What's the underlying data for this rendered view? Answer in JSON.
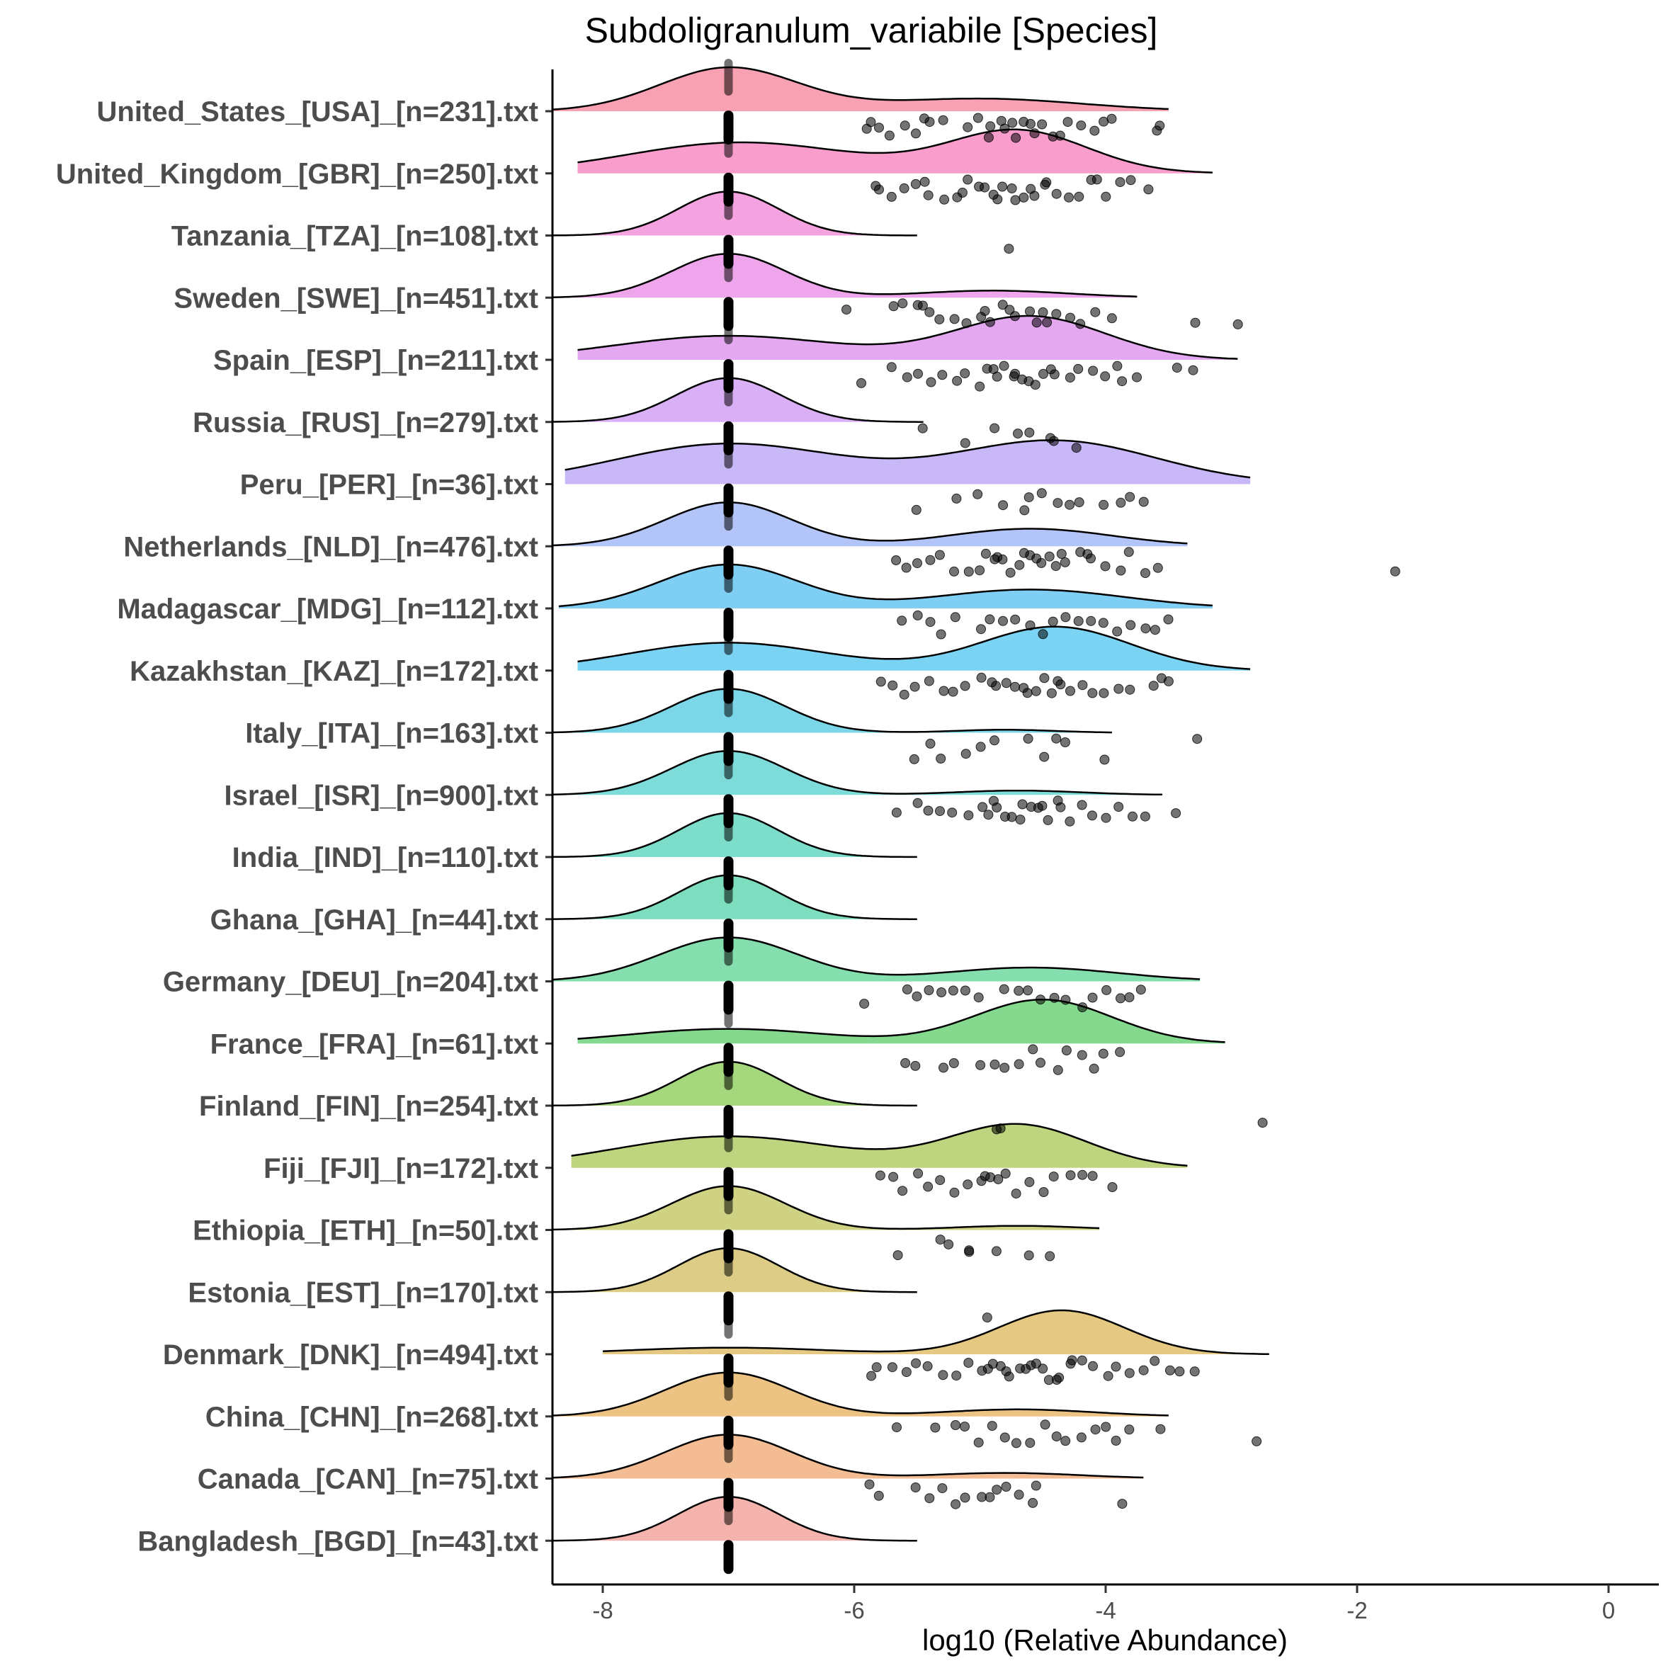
{
  "chart_data": {
    "type": "raincloud",
    "title": "Subdoligranulum_variabile [Species]",
    "xlabel": "log10 (Relative Abundance)",
    "ylabel": "",
    "xlim": [
      -8.4,
      0.4
    ],
    "xticks": [
      -8,
      -6,
      -4,
      -2,
      0
    ],
    "xtick_labels": [
      "-8",
      "-6",
      "-4",
      "-2",
      "0"
    ],
    "zero_value": -7,
    "groups": [
      {
        "label": "United_States_[USA]_[n=231].txt",
        "color": "#F8A1B2",
        "range": [
          -8.4,
          -3.5
        ],
        "comps": [
          [
            0.62,
            -7.0,
            0.55
          ],
          [
            0.18,
            -5.0,
            0.8
          ]
        ],
        "points": [
          -5.9,
          -5.85,
          -5.8,
          -5.7,
          -5.6,
          -5.5,
          -5.45,
          -5.4,
          -5.3,
          -5.1,
          -5.0,
          -4.95,
          -4.9,
          -4.85,
          -4.8,
          -4.75,
          -4.7,
          -4.65,
          -4.6,
          -4.55,
          -4.5,
          -4.4,
          -4.35,
          -4.3,
          -4.2,
          -4.1,
          -4.0,
          -3.95,
          -3.55,
          -3.6
        ]
      },
      {
        "label": "United_Kingdom_[GBR]_[n=250].txt",
        "color": "#F89DCC",
        "range": [
          -8.2,
          -3.15
        ],
        "comps": [
          [
            0.22,
            -6.9,
            0.9
          ],
          [
            0.3,
            -4.7,
            0.55
          ]
        ],
        "points": [
          -5.85,
          -5.8,
          -5.7,
          -5.6,
          -5.5,
          -5.45,
          -5.4,
          -5.3,
          -5.2,
          -5.15,
          -5.1,
          -5.0,
          -4.95,
          -4.9,
          -4.85,
          -4.8,
          -4.75,
          -4.7,
          -4.65,
          -4.6,
          -4.55,
          -4.5,
          -4.45,
          -4.4,
          -4.3,
          -4.2,
          -4.1,
          -4.05,
          -4.0,
          -3.9,
          -3.8,
          -3.65
        ]
      },
      {
        "label": "Tanzania_[TZA]_[n=108].txt",
        "color": "#F5A3E0",
        "range": [
          -8.4,
          -5.5
        ],
        "comps": [
          [
            1.0,
            -7.0,
            0.4
          ]
        ],
        "points": [
          -4.75
        ]
      },
      {
        "label": "Sweden_[SWE]_[n=451].txt",
        "color": "#EFA5EB",
        "range": [
          -8.4,
          -3.75
        ],
        "comps": [
          [
            0.75,
            -7.0,
            0.45
          ],
          [
            0.12,
            -4.9,
            0.6
          ]
        ],
        "points": [
          -6.05,
          -5.7,
          -5.6,
          -5.5,
          -5.45,
          -5.4,
          -5.3,
          -5.2,
          -5.1,
          -5.0,
          -4.95,
          -4.9,
          -4.8,
          -4.75,
          -4.7,
          -4.6,
          -4.55,
          -4.5,
          -4.45,
          -4.4,
          -4.3,
          -4.2,
          -4.1,
          -3.95,
          -3.3,
          -2.95
        ]
      },
      {
        "label": "Spain_[ESP]_[n=211].txt",
        "color": "#E3A8F0",
        "range": [
          -8.2,
          -2.95
        ],
        "comps": [
          [
            0.25,
            -7.0,
            0.9
          ],
          [
            0.45,
            -4.6,
            0.6
          ]
        ],
        "points": [
          -5.95,
          -5.7,
          -5.6,
          -5.5,
          -5.4,
          -5.3,
          -5.2,
          -5.1,
          -5.0,
          -4.95,
          -4.9,
          -4.85,
          -4.8,
          -4.75,
          -4.7,
          -4.65,
          -4.6,
          -4.55,
          -4.5,
          -4.45,
          -4.4,
          -4.3,
          -4.2,
          -4.1,
          -4.0,
          -3.9,
          -3.85,
          -3.75,
          -3.45,
          -3.3
        ]
      },
      {
        "label": "Russia_[RUS]_[n=279].txt",
        "color": "#D9B0F5",
        "range": [
          -8.4,
          -5.45
        ],
        "comps": [
          [
            1.0,
            -7.0,
            0.42
          ]
        ],
        "points": [
          -5.45,
          -5.1,
          -4.9,
          -4.7,
          -4.6,
          -4.45,
          -4.4,
          -4.25
        ]
      },
      {
        "label": "Peru_[PER]_[n=36].txt",
        "color": "#C8B8F8",
        "range": [
          -8.3,
          -2.85
        ],
        "comps": [
          [
            0.42,
            -7.0,
            0.9
          ],
          [
            0.45,
            -4.4,
            0.8
          ]
        ],
        "points": [
          -5.5,
          -5.2,
          -5.0,
          -4.8,
          -4.65,
          -4.6,
          -4.5,
          -4.4,
          -4.3,
          -4.2,
          -4.0,
          -3.9,
          -3.8,
          -3.7
        ]
      },
      {
        "label": "Netherlands_[NLD]_[n=476].txt",
        "color": "#B3C5F8",
        "range": [
          -8.4,
          -3.35
        ],
        "comps": [
          [
            0.7,
            -7.0,
            0.5
          ],
          [
            0.28,
            -4.6,
            0.65
          ]
        ],
        "points": [
          -5.65,
          -5.6,
          -5.5,
          -5.4,
          -5.3,
          -5.2,
          -5.1,
          -5.0,
          -4.95,
          -4.9,
          -4.85,
          -4.8,
          -4.75,
          -4.7,
          -4.65,
          -4.6,
          -4.55,
          -4.5,
          -4.45,
          -4.4,
          -4.35,
          -4.3,
          -4.2,
          -4.15,
          -4.1,
          -4.0,
          -3.9,
          -3.8,
          -3.7,
          -3.6,
          -1.7
        ]
      },
      {
        "label": "Madagascar_[MDG]_[n=112].txt",
        "color": "#7FCFF5",
        "range": [
          -8.35,
          -3.15
        ],
        "comps": [
          [
            0.65,
            -7.0,
            0.55
          ],
          [
            0.28,
            -4.6,
            0.75
          ]
        ],
        "points": [
          -5.6,
          -5.5,
          -5.4,
          -5.3,
          -5.2,
          -5.0,
          -4.9,
          -4.8,
          -4.7,
          -4.6,
          -4.5,
          -4.4,
          -4.3,
          -4.2,
          -4.1,
          -4.0,
          -3.9,
          -3.8,
          -3.7,
          -3.6,
          -3.5
        ]
      },
      {
        "label": "Kazakhstan_[KAZ]_[n=172].txt",
        "color": "#7AD3F2",
        "range": [
          -8.2,
          -2.85
        ],
        "comps": [
          [
            0.35,
            -7.0,
            0.8
          ],
          [
            0.55,
            -4.4,
            0.6
          ]
        ],
        "points": [
          -5.8,
          -5.7,
          -5.6,
          -5.5,
          -5.4,
          -5.3,
          -5.2,
          -5.1,
          -5.0,
          -4.9,
          -4.85,
          -4.8,
          -4.7,
          -4.65,
          -4.6,
          -4.55,
          -4.5,
          -4.45,
          -4.4,
          -4.35,
          -4.3,
          -4.2,
          -4.1,
          -4.0,
          -3.9,
          -3.8,
          -3.6,
          -3.55,
          -3.5
        ]
      },
      {
        "label": "Italy_[ITA]_[n=163].txt",
        "color": "#7BD7E8",
        "range": [
          -8.4,
          -3.95
        ],
        "comps": [
          [
            0.88,
            -7.0,
            0.45
          ],
          [
            0.06,
            -4.8,
            0.4
          ]
        ],
        "points": [
          -5.5,
          -5.4,
          -5.3,
          -5.1,
          -5.0,
          -4.9,
          -4.6,
          -4.5,
          -4.4,
          -4.3,
          -4.0,
          -3.25
        ]
      },
      {
        "label": "Israel_[ISR]_[n=900].txt",
        "color": "#7DDCD9",
        "range": [
          -8.4,
          -3.55
        ],
        "comps": [
          [
            0.82,
            -7.0,
            0.45
          ],
          [
            0.08,
            -4.7,
            0.5
          ]
        ],
        "points": [
          -5.65,
          -5.5,
          -5.4,
          -5.3,
          -5.2,
          -5.1,
          -5.0,
          -4.95,
          -4.9,
          -4.85,
          -4.8,
          -4.75,
          -4.7,
          -4.65,
          -4.6,
          -4.55,
          -4.5,
          -4.45,
          -4.4,
          -4.35,
          -4.3,
          -4.2,
          -4.1,
          -4.0,
          -3.9,
          -3.8,
          -3.7,
          -3.45
        ]
      },
      {
        "label": "India_[IND]_[n=110].txt",
        "color": "#7DDDCB",
        "range": [
          -8.4,
          -5.5
        ],
        "comps": [
          [
            1.0,
            -7.0,
            0.4
          ]
        ],
        "points": []
      },
      {
        "label": "Ghana_[GHA]_[n=44].txt",
        "color": "#7DDEBF",
        "range": [
          -8.4,
          -5.5
        ],
        "comps": [
          [
            1.0,
            -7.0,
            0.4
          ]
        ],
        "points": []
      },
      {
        "label": "Germany_[DEU]_[n=204].txt",
        "color": "#85DEAD",
        "range": [
          -8.4,
          -3.25
        ],
        "comps": [
          [
            0.7,
            -7.0,
            0.55
          ],
          [
            0.22,
            -4.6,
            0.7
          ]
        ],
        "points": [
          -5.9,
          -5.6,
          -5.5,
          -5.4,
          -5.3,
          -5.2,
          -5.1,
          -5.0,
          -4.8,
          -4.7,
          -4.6,
          -4.5,
          -4.4,
          -4.3,
          -4.2,
          -4.1,
          -4.0,
          -3.9,
          -3.8,
          -3.7
        ]
      },
      {
        "label": "France_[FRA]_[n=61].txt",
        "color": "#85D98F",
        "range": [
          -8.2,
          -3.05
        ],
        "comps": [
          [
            0.2,
            -7.0,
            0.8
          ],
          [
            0.6,
            -4.5,
            0.55
          ]
        ],
        "points": [
          -5.6,
          -5.5,
          -5.3,
          -5.2,
          -5.0,
          -4.9,
          -4.8,
          -4.7,
          -4.6,
          -4.5,
          -4.4,
          -4.3,
          -4.2,
          -4.1,
          -4.0,
          -3.9
        ]
      },
      {
        "label": "Finland_[FIN]_[n=254].txt",
        "color": "#A5D87D",
        "range": [
          -8.4,
          -5.5
        ],
        "comps": [
          [
            1.0,
            -7.0,
            0.4
          ]
        ],
        "points": [
          -4.85,
          -4.85,
          -2.75
        ]
      },
      {
        "label": "Fiji_[FJI]_[n=172].txt",
        "color": "#BFD47F",
        "range": [
          -8.25,
          -3.35
        ],
        "comps": [
          [
            0.28,
            -7.0,
            0.9
          ],
          [
            0.38,
            -4.7,
            0.55
          ]
        ],
        "points": [
          -5.8,
          -5.7,
          -5.6,
          -5.5,
          -5.4,
          -5.3,
          -5.2,
          -5.1,
          -5.0,
          -4.95,
          -4.9,
          -4.85,
          -4.8,
          -4.7,
          -4.6,
          -4.5,
          -4.4,
          -4.3,
          -4.2,
          -4.1,
          -3.95
        ]
      },
      {
        "label": "Ethiopia_[ETH]_[n=50].txt",
        "color": "#CFD283",
        "range": [
          -8.4,
          -4.05
        ],
        "comps": [
          [
            0.85,
            -7.0,
            0.45
          ],
          [
            0.08,
            -4.7,
            0.5
          ]
        ],
        "points": [
          -5.65,
          -5.3,
          -5.25,
          -5.1,
          -5.1,
          -4.85,
          -4.6,
          -4.45
        ]
      },
      {
        "label": "Estonia_[EST]_[n=170].txt",
        "color": "#DCCC85",
        "range": [
          -8.4,
          -5.5
        ],
        "comps": [
          [
            1.0,
            -7.0,
            0.4
          ]
        ],
        "points": [
          -4.95
        ]
      },
      {
        "label": "Denmark_[DNK]_[n=494].txt",
        "color": "#E5C983",
        "range": [
          -8.0,
          -2.7
        ],
        "comps": [
          [
            0.12,
            -7.0,
            0.8
          ],
          [
            0.8,
            -4.35,
            0.5
          ]
        ],
        "points": [
          -5.85,
          -5.8,
          -5.7,
          -5.6,
          -5.5,
          -5.4,
          -5.3,
          -5.2,
          -5.1,
          -5.0,
          -4.95,
          -4.9,
          -4.85,
          -4.8,
          -4.75,
          -4.7,
          -4.65,
          -4.6,
          -4.55,
          -4.5,
          -4.45,
          -4.4,
          -4.35,
          -4.3,
          -4.25,
          -4.2,
          -4.1,
          -4.0,
          -3.9,
          -3.8,
          -3.7,
          -3.6,
          -3.5,
          -3.4,
          -3.3
        ]
      },
      {
        "label": "China_[CHN]_[n=268].txt",
        "color": "#EDC383",
        "range": [
          -8.4,
          -3.5
        ],
        "comps": [
          [
            0.75,
            -7.0,
            0.5
          ],
          [
            0.12,
            -4.7,
            0.6
          ]
        ],
        "points": [
          -5.65,
          -5.35,
          -5.2,
          -5.1,
          -5.0,
          -4.9,
          -4.8,
          -4.7,
          -4.6,
          -4.5,
          -4.4,
          -4.3,
          -4.2,
          -4.1,
          -4.0,
          -3.9,
          -3.8,
          -3.55,
          -2.8
        ]
      },
      {
        "label": "Canada_[CAN]_[n=75].txt",
        "color": "#F4BC93",
        "range": [
          -8.4,
          -3.7
        ],
        "comps": [
          [
            0.78,
            -7.0,
            0.5
          ],
          [
            0.1,
            -4.8,
            0.6
          ]
        ],
        "points": [
          -5.9,
          -5.8,
          -5.5,
          -5.4,
          -5.3,
          -5.2,
          -5.1,
          -5.0,
          -4.9,
          -4.85,
          -4.8,
          -4.7,
          -4.6,
          -4.55,
          -3.85
        ]
      },
      {
        "label": "Bangladesh_[BGD]_[n=43].txt",
        "color": "#F5B3AE",
        "range": [
          -8.4,
          -5.5
        ],
        "comps": [
          [
            1.0,
            -7.0,
            0.4
          ]
        ],
        "points": []
      }
    ]
  }
}
